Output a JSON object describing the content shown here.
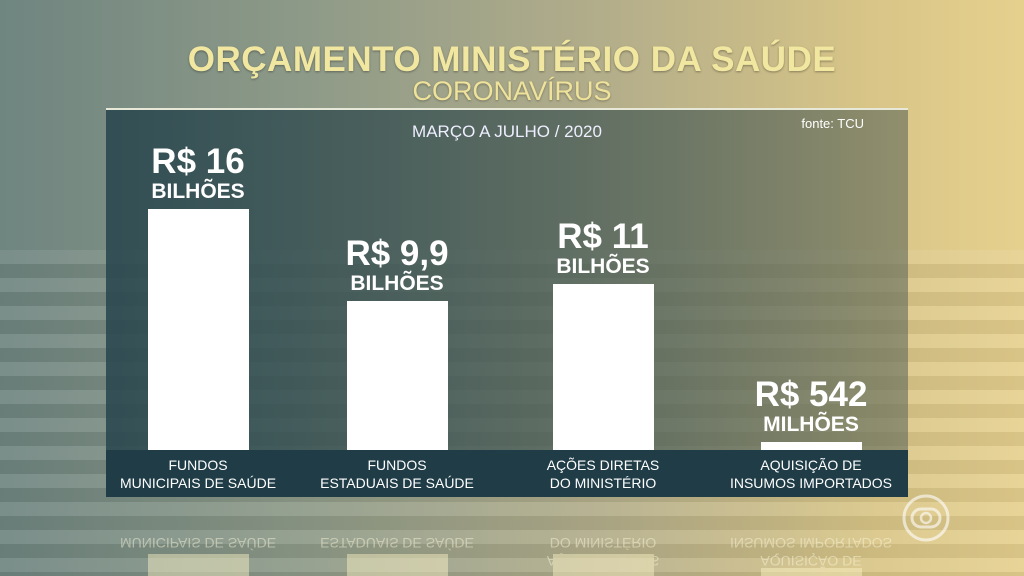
{
  "title": "ORÇAMENTO MINISTÉRIO DA SAÚDE",
  "subtitle": "CORONAVÍRUS",
  "period": "MARÇO A JULHO / 2020",
  "source": "fonte: TCU",
  "colors": {
    "title": "#f1e7a0",
    "bar": "#ffffff",
    "band": "#1f3c47"
  },
  "logo": "globo-icon",
  "chart_data": {
    "type": "bar",
    "title": "ORÇAMENTO MINISTÉRIO DA SAÚDE",
    "subtitle": "CORONAVÍRUS",
    "unit": "R$ bilhões",
    "categories": [
      {
        "line1": "FUNDOS",
        "line2": "MUNICIPAIS DE SAÚDE"
      },
      {
        "line1": "FUNDOS",
        "line2": "ESTADUAIS DE SAÚDE"
      },
      {
        "line1": "AÇÕES DIRETAS",
        "line2": "DO MINISTÉRIO"
      },
      {
        "line1": "AQUISIÇÃO DE",
        "line2": "INSUMOS IMPORTADOS"
      }
    ],
    "values": [
      16,
      9.9,
      11,
      0.542
    ],
    "labels": [
      {
        "num": "R$ 16",
        "unit": "BILHÕES"
      },
      {
        "num": "R$ 9,9",
        "unit": "BILHÕES"
      },
      {
        "num": "R$ 11",
        "unit": "BILHÕES"
      },
      {
        "num": "R$ 542",
        "unit": "MILHÕES"
      }
    ],
    "ylim": [
      0,
      16
    ],
    "grid": false
  }
}
